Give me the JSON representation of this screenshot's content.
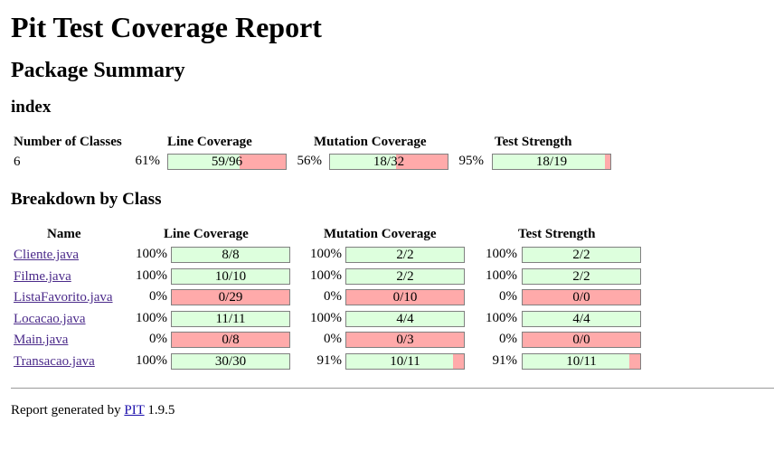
{
  "title": "Pit Test Coverage Report",
  "package_summary": "Package Summary",
  "package_name": "index",
  "summary": {
    "headers": [
      "Number of Classes",
      "Line Coverage",
      "Mutation Coverage",
      "Test Strength"
    ],
    "classes": "6",
    "line": {
      "pct": "61%",
      "label": "59/96",
      "fraction": 0.61
    },
    "mutation": {
      "pct": "56%",
      "label": "18/32",
      "fraction": 0.56
    },
    "strength": {
      "pct": "95%",
      "label": "18/19",
      "fraction": 0.95
    }
  },
  "breakdown_title": "Breakdown by Class",
  "breakdown_headers": [
    "Name",
    "Line Coverage",
    "Mutation Coverage",
    "Test Strength"
  ],
  "classes": [
    {
      "name": "Cliente.java",
      "line": {
        "pct": "100%",
        "label": "8/8",
        "fraction": 1.0
      },
      "mutation": {
        "pct": "100%",
        "label": "2/2",
        "fraction": 1.0
      },
      "strength": {
        "pct": "100%",
        "label": "2/2",
        "fraction": 1.0
      }
    },
    {
      "name": "Filme.java",
      "line": {
        "pct": "100%",
        "label": "10/10",
        "fraction": 1.0
      },
      "mutation": {
        "pct": "100%",
        "label": "2/2",
        "fraction": 1.0
      },
      "strength": {
        "pct": "100%",
        "label": "2/2",
        "fraction": 1.0
      }
    },
    {
      "name": "ListaFavorito.java",
      "line": {
        "pct": "0%",
        "label": "0/29",
        "fraction": 0.0
      },
      "mutation": {
        "pct": "0%",
        "label": "0/10",
        "fraction": 0.0
      },
      "strength": {
        "pct": "0%",
        "label": "0/0",
        "fraction": 0.0
      }
    },
    {
      "name": "Locacao.java",
      "line": {
        "pct": "100%",
        "label": "11/11",
        "fraction": 1.0
      },
      "mutation": {
        "pct": "100%",
        "label": "4/4",
        "fraction": 1.0
      },
      "strength": {
        "pct": "100%",
        "label": "4/4",
        "fraction": 1.0
      }
    },
    {
      "name": "Main.java",
      "line": {
        "pct": "0%",
        "label": "0/8",
        "fraction": 0.0
      },
      "mutation": {
        "pct": "0%",
        "label": "0/3",
        "fraction": 0.0
      },
      "strength": {
        "pct": "0%",
        "label": "0/0",
        "fraction": 0.0
      }
    },
    {
      "name": "Transacao.java",
      "line": {
        "pct": "100%",
        "label": "30/30",
        "fraction": 1.0
      },
      "mutation": {
        "pct": "91%",
        "label": "10/11",
        "fraction": 0.91
      },
      "strength": {
        "pct": "91%",
        "label": "10/11",
        "fraction": 0.91
      }
    }
  ],
  "footer": {
    "prefix": "Report generated by",
    "link": "PIT",
    "version": "1.9.5"
  },
  "colors": {
    "covered": "#ddffdd",
    "uncovered": "#ffaaaa",
    "link": "#1a0dab"
  }
}
